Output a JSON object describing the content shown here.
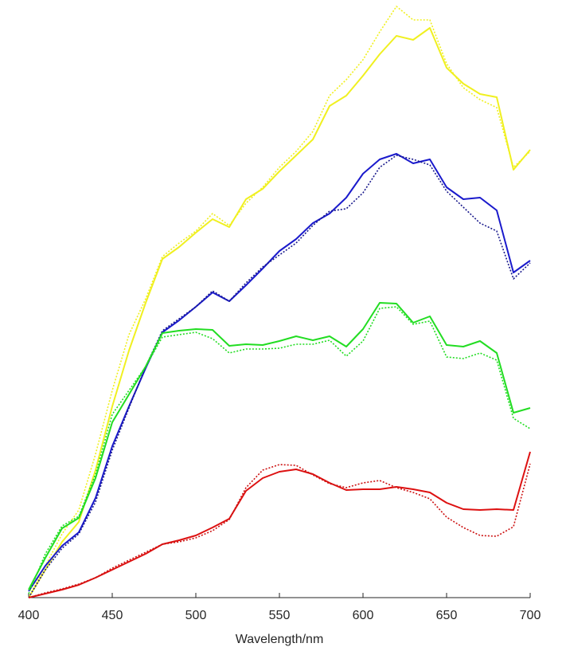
{
  "chart_data": {
    "type": "line",
    "xlabel": "Wavelength/nm",
    "x": [
      400,
      410,
      420,
      430,
      440,
      450,
      460,
      470,
      480,
      490,
      500,
      510,
      520,
      530,
      540,
      550,
      560,
      570,
      580,
      590,
      600,
      610,
      620,
      630,
      640,
      650,
      660,
      670,
      680,
      690,
      700
    ],
    "xlim": [
      400,
      700
    ],
    "xticks": [
      400,
      450,
      500,
      550,
      600,
      650,
      700
    ],
    "ylim": [
      0,
      745
    ],
    "series": [
      {
        "color": "#f0f020",
        "style": "solid",
        "values": [
          0,
          35,
          70,
          95,
          160,
          240,
          310,
          370,
          425,
          440,
          458,
          475,
          465,
          500,
          513,
          535,
          555,
          575,
          617,
          630,
          655,
          682,
          705,
          700,
          715,
          665,
          645,
          632,
          628,
          537,
          562
        ]
      },
      {
        "color": "#f0f020",
        "style": "dotted",
        "values": [
          0,
          40,
          80,
          110,
          180,
          260,
          330,
          375,
          428,
          445,
          460,
          482,
          467,
          495,
          515,
          540,
          560,
          585,
          630,
          650,
          675,
          710,
          742,
          725,
          725,
          670,
          640,
          625,
          615,
          540,
          560
        ]
      },
      {
        "color": "#1a1acc",
        "style": "solid",
        "values": [
          8,
          40,
          65,
          82,
          125,
          190,
          240,
          288,
          333,
          348,
          365,
          383,
          372,
          392,
          413,
          435,
          450,
          470,
          482,
          502,
          532,
          550,
          557,
          545,
          550,
          515,
          500,
          502,
          486,
          408,
          423
        ]
      },
      {
        "color": "#1a1a8c",
        "style": "dotted",
        "values": [
          0,
          35,
          62,
          80,
          120,
          185,
          238,
          290,
          335,
          350,
          365,
          385,
          372,
          395,
          415,
          430,
          445,
          467,
          485,
          488,
          508,
          540,
          555,
          550,
          543,
          510,
          490,
          470,
          460,
          400,
          420
        ]
      },
      {
        "color": "#22dd22",
        "style": "solid",
        "values": [
          10,
          50,
          87,
          100,
          150,
          220,
          255,
          290,
          332,
          335,
          337,
          336,
          316,
          318,
          317,
          322,
          328,
          323,
          328,
          315,
          337,
          370,
          369,
          345,
          353,
          317,
          315,
          322,
          307,
          232,
          238
        ]
      },
      {
        "color": "#22dd22",
        "style": "dotted",
        "values": [
          5,
          55,
          90,
          102,
          155,
          230,
          260,
          290,
          327,
          330,
          333,
          325,
          307,
          312,
          312,
          313,
          318,
          318,
          323,
          303,
          322,
          363,
          365,
          343,
          347,
          302,
          300,
          307,
          298,
          225,
          212
        ]
      },
      {
        "color": "#dd1111",
        "style": "solid",
        "values": [
          0,
          5,
          10,
          16,
          25,
          35,
          45,
          55,
          67,
          72,
          78,
          88,
          99,
          134,
          150,
          158,
          161,
          155,
          144,
          135,
          136,
          136,
          139,
          136,
          132,
          119,
          111,
          110,
          111,
          110,
          183
        ]
      },
      {
        "color": "#cc1111",
        "style": "dotted",
        "values": [
          0,
          6,
          11,
          17,
          25,
          37,
          47,
          57,
          67,
          70,
          75,
          84,
          98,
          138,
          160,
          167,
          166,
          154,
          143,
          138,
          144,
          147,
          138,
          132,
          124,
          101,
          88,
          78,
          77,
          89,
          168
        ]
      }
    ]
  }
}
